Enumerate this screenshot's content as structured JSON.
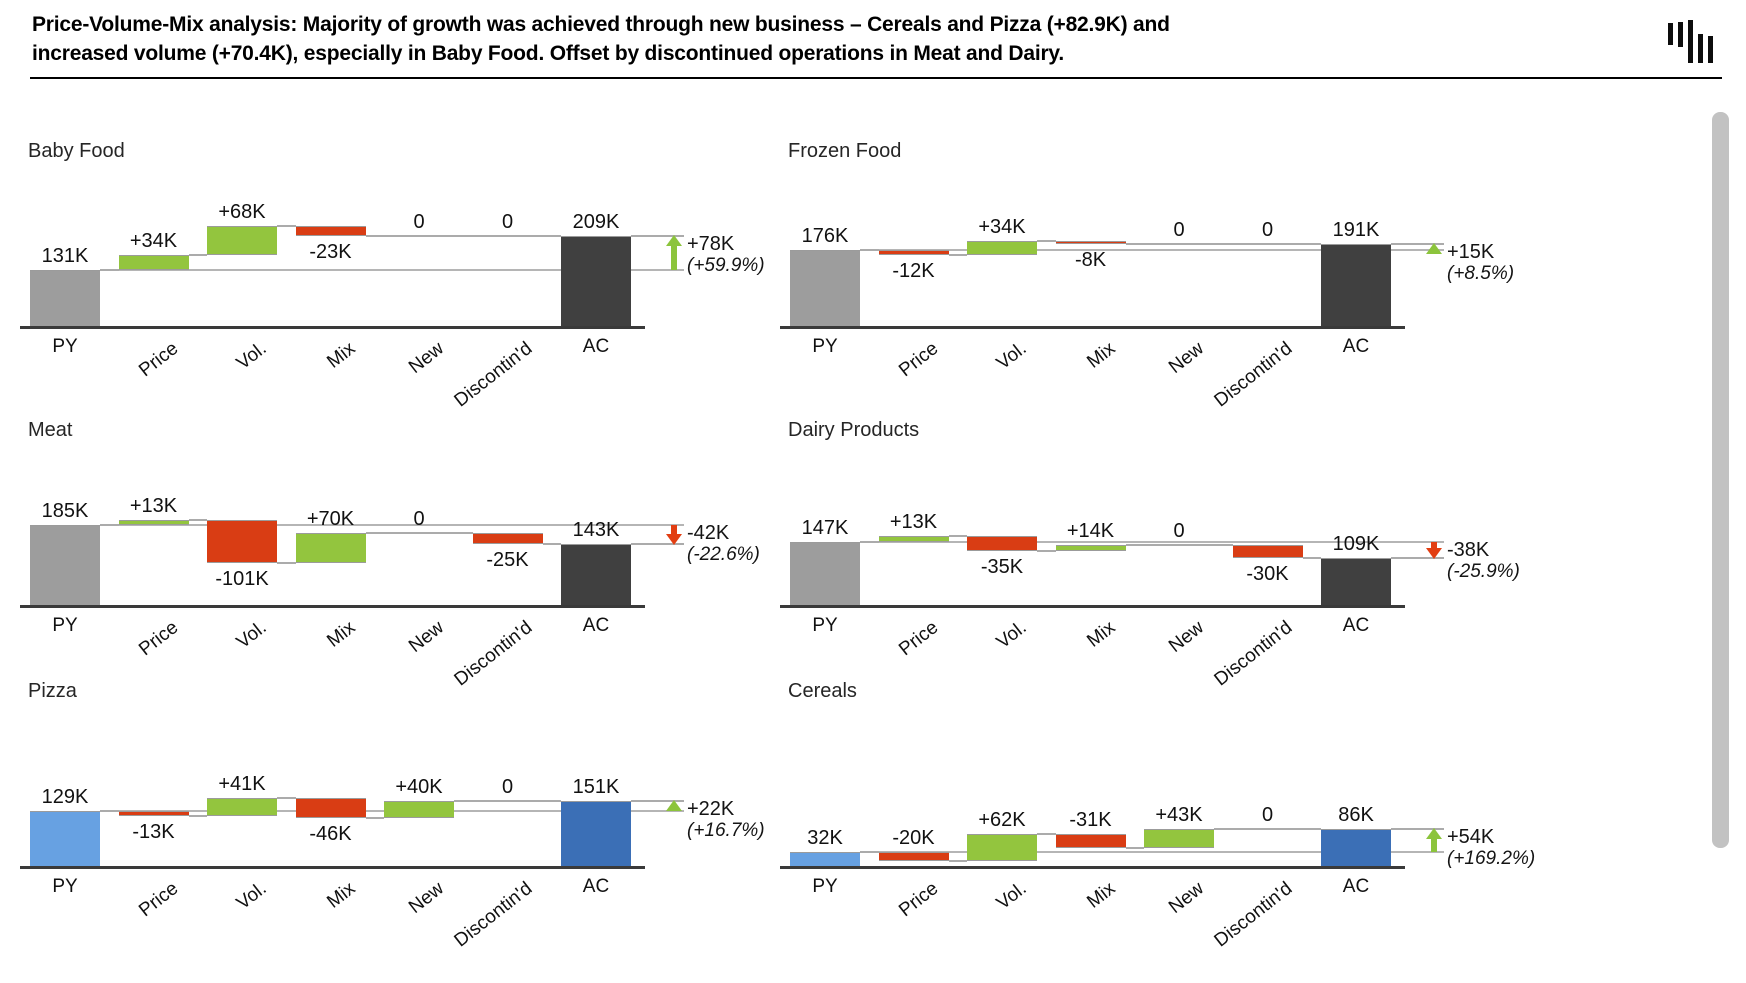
{
  "header": {
    "title_line1": "Price-Volume-Mix analysis: Majority of growth was achieved through new business – Cereals and Pizza (+82.9K) and",
    "title_line2": "increased volume (+70.4K), especially in Baby Food. Offset by discontinued operations in Meat and Dairy.",
    "logo_icon": "waterfall-bars-logo"
  },
  "colors": {
    "py_gray": "#9D9D9D",
    "ac_dark": "#404040",
    "py_lightblue": "#67A1E2",
    "ac_blue": "#3B6FB6",
    "increase_green": "#93C53E",
    "decrease_red": "#D93D14",
    "delta_up_green": "#8CC43C",
    "delta_down_red": "#E23E12",
    "connector_gray": "#ABABAB",
    "axis_dark": "#3A3A3A"
  },
  "chart_data": [
    {
      "type": "bar",
      "subtype": "waterfall",
      "title": "Baby Food",
      "categories": [
        "PY",
        "Price",
        "Vol.",
        "Mix",
        "New",
        "Discontin'd",
        "AC"
      ],
      "values": [
        131,
        34,
        68,
        -23,
        0,
        0,
        209
      ],
      "labels": [
        "131K",
        "+34K",
        "+68K",
        "-23K",
        "0",
        "0",
        "209K"
      ],
      "py_style": "py_gray",
      "ac_style": "ac_dark",
      "delta": {
        "label": "+78K",
        "percent": "(+59.9%)",
        "direction": "up",
        "style": "stem-arrow"
      }
    },
    {
      "type": "bar",
      "subtype": "waterfall",
      "title": "Frozen Food",
      "categories": [
        "PY",
        "Price",
        "Vol.",
        "Mix",
        "New",
        "Discontin'd",
        "AC"
      ],
      "values": [
        176,
        -12,
        34,
        -8,
        0,
        0,
        191
      ],
      "labels": [
        "176K",
        "-12K",
        "+34K",
        "-8K",
        "0",
        "0",
        "191K"
      ],
      "py_style": "py_gray",
      "ac_style": "ac_dark",
      "delta": {
        "label": "+15K",
        "percent": "(+8.5%)",
        "direction": "up",
        "style": "triangle"
      }
    },
    {
      "type": "bar",
      "subtype": "waterfall",
      "title": "Meat",
      "categories": [
        "PY",
        "Price",
        "Vol.",
        "Mix",
        "New",
        "Discontin'd",
        "AC"
      ],
      "values": [
        185,
        13,
        -101,
        70,
        0,
        -25,
        143
      ],
      "labels": [
        "185K",
        "+13K",
        "-101K",
        "+70K",
        "0",
        "-25K",
        "143K"
      ],
      "py_style": "py_gray",
      "ac_style": "ac_dark",
      "delta": {
        "label": "-42K",
        "percent": "(-22.6%)",
        "direction": "down",
        "style": "stem-arrow"
      }
    },
    {
      "type": "bar",
      "subtype": "waterfall",
      "title": "Dairy Products",
      "categories": [
        "PY",
        "Price",
        "Vol.",
        "Mix",
        "New",
        "Discontin'd",
        "AC"
      ],
      "values": [
        147,
        13,
        -35,
        14,
        0,
        -30,
        109
      ],
      "labels": [
        "147K",
        "+13K",
        "-35K",
        "+14K",
        "0",
        "-30K",
        "109K"
      ],
      "py_style": "py_gray",
      "ac_style": "ac_dark",
      "delta": {
        "label": "-38K",
        "percent": "(-25.9%)",
        "direction": "down",
        "style": "stem-arrow"
      }
    },
    {
      "type": "bar",
      "subtype": "waterfall",
      "title": "Pizza",
      "categories": [
        "PY",
        "Price",
        "Vol.",
        "Mix",
        "New",
        "Discontin'd",
        "AC"
      ],
      "values": [
        129,
        -13,
        41,
        -46,
        40,
        0,
        151
      ],
      "labels": [
        "129K",
        "-13K",
        "+41K",
        "-46K",
        "+40K",
        "0",
        "151K"
      ],
      "py_style": "py_lightblue",
      "ac_style": "ac_blue",
      "delta": {
        "label": "+22K",
        "percent": "(+16.7%)",
        "direction": "up",
        "style": "triangle"
      }
    },
    {
      "type": "bar",
      "subtype": "waterfall",
      "title": "Cereals",
      "categories": [
        "PY",
        "Price",
        "Vol.",
        "Mix",
        "New",
        "Discontin'd",
        "AC"
      ],
      "values": [
        32,
        -20,
        62,
        -31,
        43,
        0,
        86
      ],
      "labels": [
        "32K",
        "-20K",
        "+62K",
        "-31K",
        "+43K",
        "0",
        "86K"
      ],
      "py_style": "py_lightblue",
      "ac_style": "ac_blue",
      "delta": {
        "label": "+54K",
        "percent": "(+169.2%)",
        "direction": "up",
        "style": "stem-arrow"
      }
    }
  ]
}
